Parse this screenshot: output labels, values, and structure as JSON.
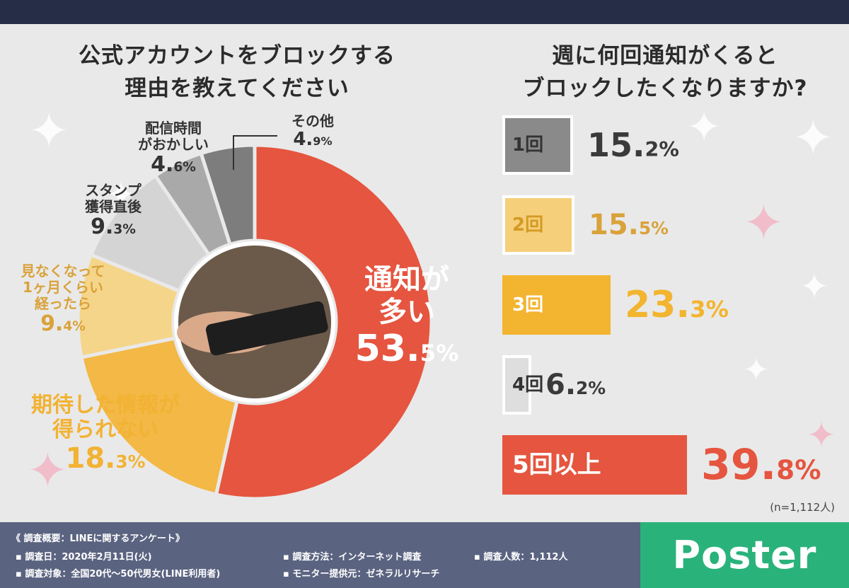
{
  "left_title": [
    "公式アカウントをブロックする",
    "理由を教えてください"
  ],
  "right_title": [
    "週に何回通知がくると",
    "ブロックしたくなりますか?"
  ],
  "chart_data": [
    {
      "type": "donut",
      "title": "公式アカウントをブロックする理由を教えてください",
      "slices": [
        {
          "label": "通知が多い",
          "value": 53.5,
          "color": "#e5553f"
        },
        {
          "label": "期待した情報が得られない",
          "value": 18.3,
          "color": "#f3b845"
        },
        {
          "label": "見なくなって1ヶ月くらい経ったら",
          "value": 9.4,
          "color": "#f5d58a"
        },
        {
          "label": "スタンプ獲得直後",
          "value": 9.3,
          "color": "#d4d4d4"
        },
        {
          "label": "配信時間がおかしい",
          "value": 4.6,
          "color": "#a9a9a9"
        },
        {
          "label": "その他",
          "value": 4.9,
          "color": "#7d7d7d"
        }
      ]
    },
    {
      "type": "bar",
      "orientation": "horizontal",
      "title": "週に何回通知がくるとブロックしたくなりますか?",
      "categories": [
        "1回",
        "2回",
        "3回",
        "4回",
        "5回以上"
      ],
      "values": [
        15.2,
        15.5,
        23.3,
        6.2,
        39.8
      ],
      "colors": [
        "#8a8a8a",
        "#f5cf7a",
        "#f3b42f",
        "#dedede",
        "#e5553f"
      ],
      "outline": [
        true,
        true,
        false,
        true,
        false
      ],
      "label_colors": [
        "#333333",
        "#d49a22",
        "#ffffff",
        "#333333",
        "#ffffff"
      ],
      "value_colors": [
        "#3a3a3a",
        "#d9a23a",
        "#f3b42f",
        "#3a3a3a",
        "#e5553f"
      ],
      "note": "(n=1,112人)"
    }
  ],
  "donut_labels": {
    "s0": {
      "l1": "通知が",
      "l2": "多い",
      "int": "53.",
      "dec": "5",
      "pct": "%"
    },
    "s1": {
      "l1": "期待した情報が",
      "l2": "得られない",
      "int": "18.",
      "dec": "3",
      "pct": "%"
    },
    "s2": {
      "l1": "見なくなって",
      "l2": "1ヶ月くらい",
      "l3": "経ったら",
      "int": "9.",
      "dec": "4",
      "pct": "%"
    },
    "s3": {
      "l1": "スタンプ",
      "l2": "獲得直後",
      "int": "9.",
      "dec": "3",
      "pct": "%"
    },
    "s4": {
      "l1": "配信時間",
      "l2": "がおかしい",
      "int": "4.",
      "dec": "6",
      "pct": "%"
    },
    "s5": {
      "l1": "その他",
      "int": "4.",
      "dec": "9",
      "pct": "%"
    }
  },
  "bar_value_text": [
    {
      "int": "15.",
      "dec": "2",
      "pct": "%"
    },
    {
      "int": "15.",
      "dec": "5",
      "pct": "%"
    },
    {
      "int": "23.",
      "dec": "3",
      "pct": "%"
    },
    {
      "int": "6.",
      "dec": "2",
      "pct": "%"
    },
    {
      "int": "39.",
      "dec": "8",
      "pct": "%"
    }
  ],
  "footer": {
    "heading": "《 調査概要：LINEに関するアンケート》",
    "date": "▪ 調査日：2020年2月11日(火)",
    "target": "▪ 調査対象：全国20代〜50代男女(LINE利用者)",
    "method": "▪ 調査方法：インターネット調査",
    "provider": "▪ モニター提供元：ゼネラルリサーチ",
    "count": "▪ 調査人数：1,112人"
  },
  "logo": "Poster",
  "colors": {
    "navy": "#252d47",
    "footer": "#5a6380",
    "logo_bg": "#2ab27b"
  }
}
